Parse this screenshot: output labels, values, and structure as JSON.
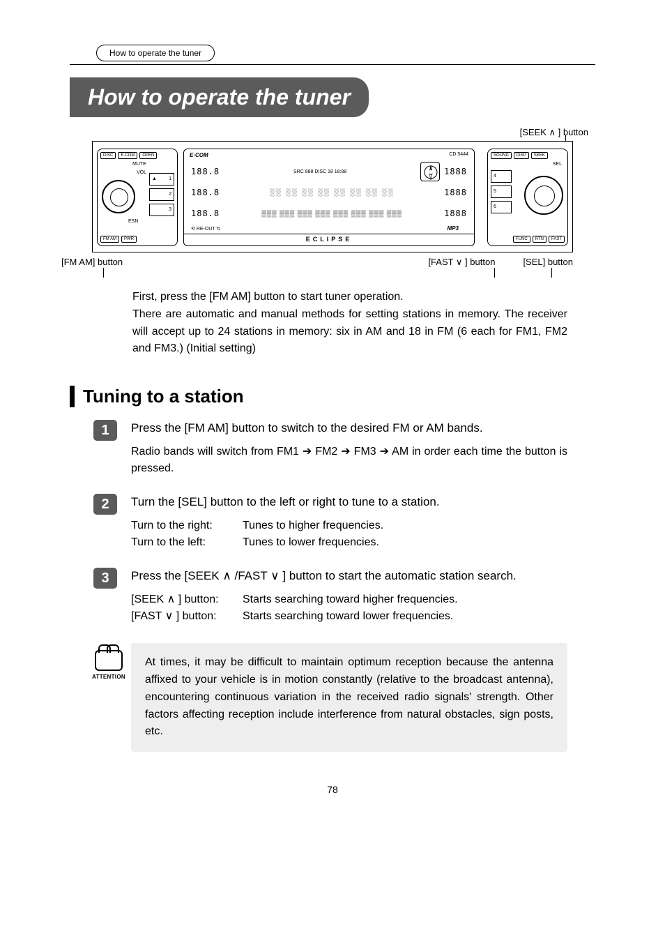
{
  "breadcrumb": "How to operate the tuner",
  "title": "How to operate the tuner",
  "callouts": {
    "seek": "[SEEK ∧ ] button",
    "fmam": "[FM AM] button",
    "fast": "[FAST ∨ ] button",
    "sel": "[SEL] button"
  },
  "diagram": {
    "left": {
      "top": [
        "DISC",
        "E·COM",
        "OPEN"
      ],
      "mute": "MUTE",
      "vol": "VOL",
      "esn": "ESN",
      "buttons": [
        "1",
        "2",
        "3"
      ],
      "eject": "▲",
      "bottom": [
        "FM AM",
        "PWR"
      ]
    },
    "center": {
      "brand": "E·COM",
      "cd": "CD 5444",
      "rows": [
        {
          "seg_left": "188.8",
          "text": "SRC 888 DISC 18  18:88",
          "seg_right": "1888"
        },
        {
          "seg_left": "188.8",
          "text": "░░ ░░ ░░ ░░ ░░ ░░ ░░ ░░",
          "seg_right": "1888"
        },
        {
          "seg_left": "188.8",
          "text": "▒▒▒ ▒▒▒ ▒▒▒ ▒▒▒ ▒▒▒ ▒▒▒ ▒▒▒ ▒▒▒",
          "seg_right": "1888"
        }
      ],
      "mp3": "MP3",
      "reout": "RE-OUT",
      "eclipse": "ECLIPSE"
    },
    "right": {
      "top": [
        "SOUND",
        "DISP",
        "SEEK"
      ],
      "sel": "SEL",
      "buttons": [
        "4",
        "5",
        "6"
      ],
      "bottom": [
        "FUNC",
        "RTN",
        "FAST"
      ]
    }
  },
  "intro": "First, press the [FM AM] button to start tuner operation.\nThere are automatic and manual methods for setting stations in memory.  The receiver will accept up to 24 stations in memory: six in AM and 18 in FM (6 each for FM1, FM2 and FM3.) (Initial setting)",
  "section_heading": "Tuning to a station",
  "steps": [
    {
      "num": "1",
      "title": "Press the [FM AM] button to switch to the desired FM or AM bands.",
      "body": "Radio bands will switch from FM1 ➔ FM2 ➔ FM3 ➔ AM in order each time the button is pressed."
    },
    {
      "num": "2",
      "title": "Turn the [SEL] button to the left or right to tune to a station.",
      "body_kv": [
        {
          "k": "Turn to the right:",
          "v": "Tunes to higher frequencies."
        },
        {
          "k": "Turn to the left:",
          "v": "Tunes to lower frequencies."
        }
      ]
    },
    {
      "num": "3",
      "title": "Press the [SEEK ∧ /FAST ∨ ] button to start the automatic station search.",
      "body_kv": [
        {
          "k": "[SEEK ∧ ] button:",
          "v": "Starts searching toward higher frequencies."
        },
        {
          "k": "[FAST ∨ ] button:",
          "v": "Starts searching toward lower frequencies."
        }
      ]
    }
  ],
  "attention": {
    "label": "ATTENTION",
    "text": "At times, it may be difficult to maintain optimum reception because the antenna affixed to your vehicle is in motion constantly (relative to the broadcast antenna), encountering continuous variation in the received radio signals' strength. Other factors affecting reception include interference from natural obstacles, sign posts, etc."
  },
  "page_number": "78",
  "colors": {
    "title_bg": "#5b5b5b",
    "step_num_bg": "#5b5b5b",
    "attention_bg": "#eeeeee",
    "text": "#000000"
  }
}
